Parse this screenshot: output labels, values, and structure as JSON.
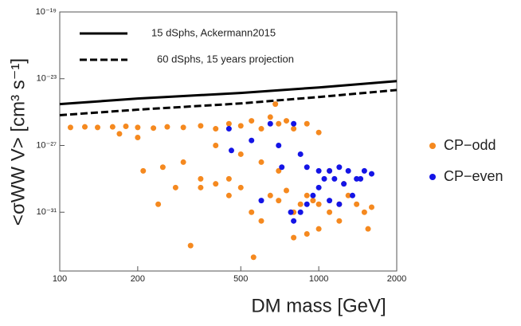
{
  "chart_data": {
    "type": "scatter",
    "xlog": true,
    "ylog": true,
    "x_label": "DM mass [GeV]",
    "y_label": "<σWW V> [cm³ s⁻¹]",
    "xlim": [
      100,
      2000
    ],
    "xticks": [
      100,
      200,
      500,
      1000,
      2000
    ],
    "ylim": [
      3e-35,
      1e-19
    ],
    "yticks": [
      {
        "value": 1e-19,
        "label": "10⁻¹⁹"
      },
      {
        "value": 1e-23,
        "label": "10⁻²³"
      },
      {
        "value": 1e-27,
        "label": "10⁻²⁷"
      },
      {
        "value": 1e-31,
        "label": "10⁻³¹"
      }
    ],
    "series": [
      {
        "name": "15 dSphs, Ackermann2015",
        "draw": "line",
        "dashed": false,
        "color": "#000000",
        "x": [
          100,
          200,
          500,
          1000,
          2000
        ],
        "values": [
          3e-25,
          6.5e-25,
          1.4e-24,
          3e-24,
          7.2e-24
        ]
      },
      {
        "name": "60 dSphs, 15 years projection",
        "draw": "line",
        "dashed": true,
        "color": "#000000",
        "x": [
          100,
          200,
          500,
          1000,
          2000
        ],
        "values": [
          6.5e-26,
          1.4e-25,
          3.3e-25,
          8e-25,
          2.1e-24
        ]
      },
      {
        "name": "CP−odd",
        "draw": "points",
        "color": "#f5891f",
        "x": [
          110,
          125,
          140,
          160,
          180,
          200,
          230,
          260,
          300,
          350,
          400,
          450,
          500,
          550,
          600,
          650,
          700,
          750,
          800,
          900,
          1000,
          680,
          170,
          200,
          210,
          250,
          300,
          280,
          240,
          350,
          400,
          450,
          500,
          550,
          600,
          650,
          700,
          750,
          800,
          850,
          900,
          950,
          1000,
          1100,
          1200,
          1300,
          1400,
          1500,
          1600,
          1000,
          900,
          1200,
          1550,
          320,
          560,
          800,
          500,
          600,
          700,
          400,
          450,
          1100,
          1250,
          350
        ],
        "values": [
          1.2e-26,
          1.3e-26,
          1.2e-26,
          1.3e-26,
          1.4e-26,
          1.2e-26,
          1.1e-26,
          1.3e-26,
          1.2e-26,
          1.5e-26,
          1e-26,
          2e-26,
          1.5e-26,
          3e-26,
          1e-26,
          5e-26,
          2e-26,
          3e-26,
          1e-26,
          2e-26,
          6e-27,
          3e-25,
          5e-27,
          3e-27,
          3e-29,
          5e-29,
          1e-28,
          3e-30,
          3e-31,
          1e-29,
          5e-30,
          1e-30,
          3e-30,
          1e-31,
          3e-32,
          1e-30,
          5e-31,
          2e-30,
          1e-31,
          3e-31,
          1e-30,
          5e-31,
          3e-31,
          1e-31,
          3e-31,
          1e-30,
          3e-31,
          1e-31,
          2e-31,
          1e-32,
          5e-33,
          3e-32,
          1e-32,
          1e-33,
          2e-34,
          3e-33,
          3e-28,
          1e-28,
          3e-29,
          1e-27,
          1e-29,
          3e-29,
          5e-30,
          3e-30
        ]
      },
      {
        "name": "CP−even",
        "draw": "points",
        "color": "#1414e6",
        "x": [
          450,
          460,
          550,
          650,
          700,
          720,
          800,
          850,
          900,
          1000,
          1050,
          1100,
          1150,
          1200,
          1300,
          1400,
          1500,
          1600,
          1000,
          950,
          900,
          850,
          800,
          1200,
          1350,
          600,
          780,
          1250,
          1450,
          1100
        ],
        "values": [
          1e-26,
          5e-28,
          2e-27,
          2e-26,
          1e-27,
          5e-29,
          2e-26,
          3e-28,
          5e-29,
          3e-29,
          1e-29,
          3e-29,
          1e-29,
          5e-29,
          3e-29,
          1e-29,
          3e-29,
          2e-29,
          3e-30,
          1e-30,
          3e-31,
          1e-31,
          3e-32,
          3e-31,
          1e-30,
          5e-31,
          1e-31,
          5e-30,
          1e-29,
          5e-31
        ]
      }
    ]
  }
}
